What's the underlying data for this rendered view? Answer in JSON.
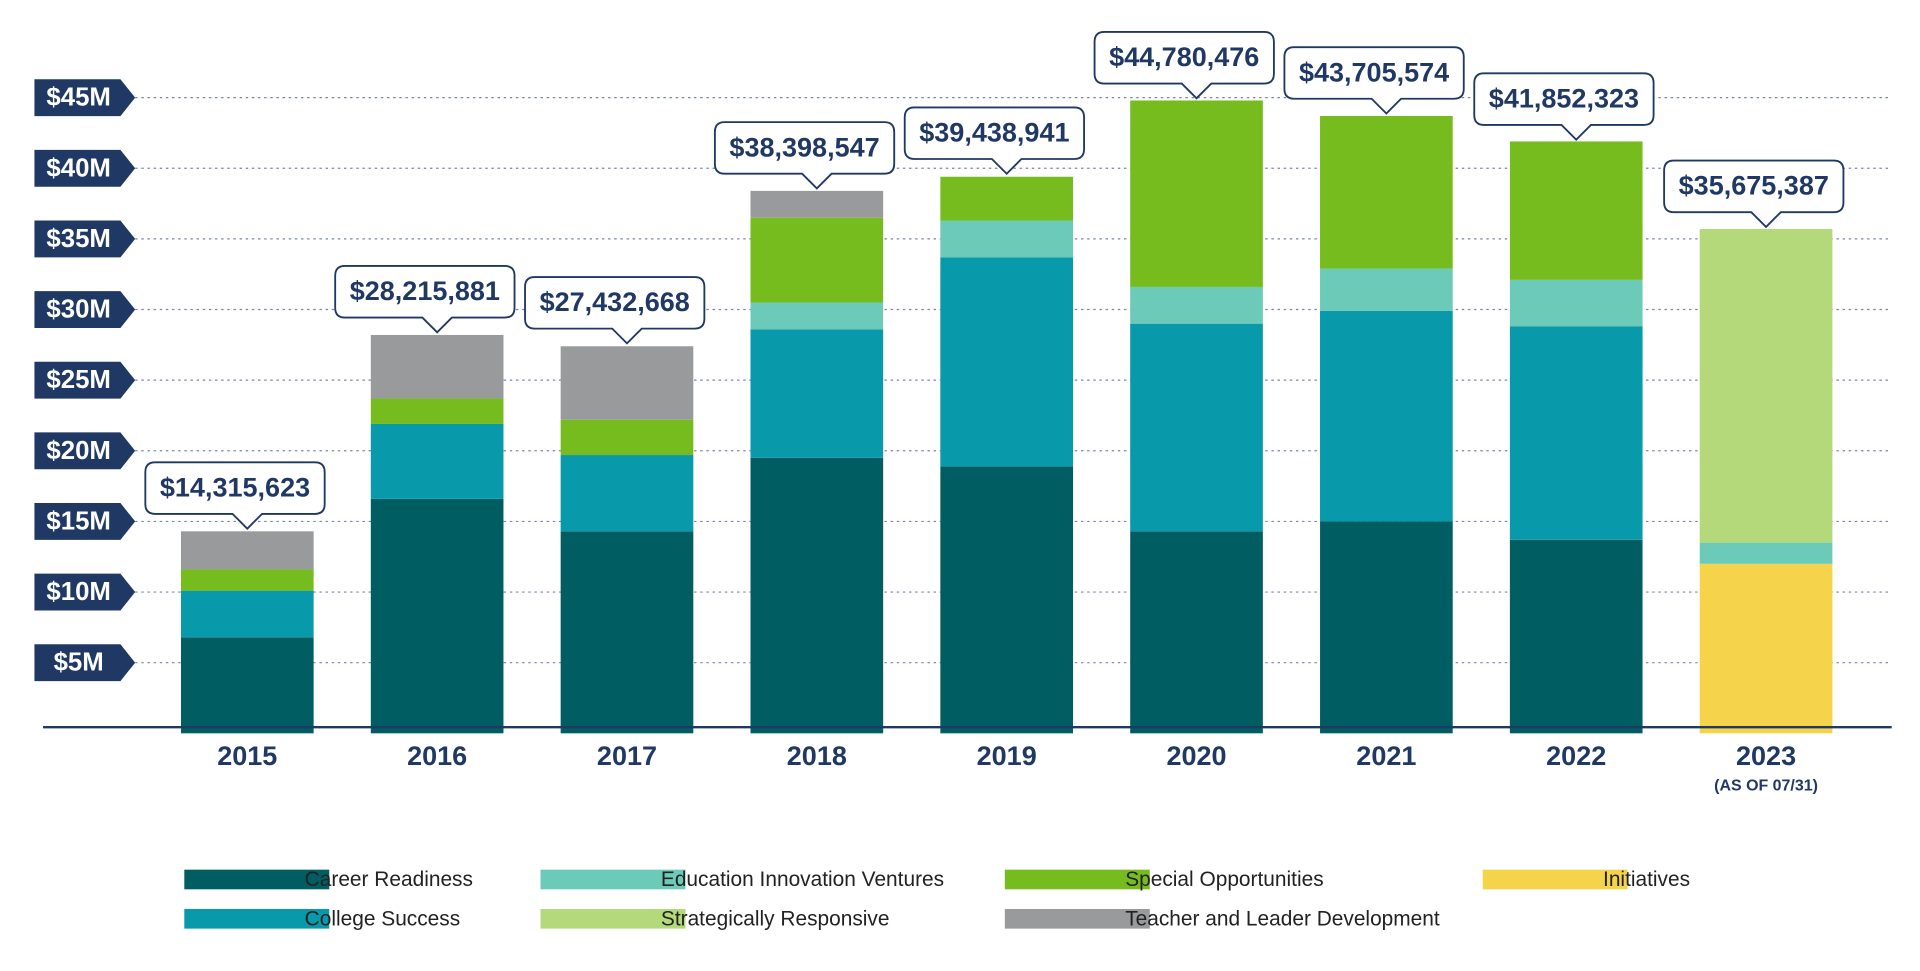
{
  "chart_data": {
    "type": "stacked-bar",
    "categories": [
      "2015",
      "2016",
      "2017",
      "2018",
      "2019",
      "2020",
      "2021",
      "2022",
      "2023"
    ],
    "category_sublabels": [
      null,
      null,
      null,
      null,
      null,
      null,
      null,
      null,
      "(AS OF 07/31)"
    ],
    "series": [
      {
        "name": "Initiatives",
        "color": "#f5d44b",
        "values": [
          0,
          0,
          0,
          0,
          0,
          0,
          0,
          0,
          12.0
        ]
      },
      {
        "name": "Career Readiness",
        "color": "#005e63",
        "values": [
          6.8,
          16.6,
          14.3,
          19.5,
          18.9,
          14.3,
          15.0,
          13.7,
          0
        ]
      },
      {
        "name": "College Success",
        "color": "#0899ab",
        "values": [
          3.3,
          5.3,
          5.4,
          9.1,
          14.8,
          14.7,
          14.9,
          15.1,
          0
        ]
      },
      {
        "name": "Education Innovation Ventures",
        "color": "#6ccbb8",
        "values": [
          0,
          0,
          0,
          1.9,
          2.6,
          2.6,
          3.0,
          3.3,
          1.5
        ]
      },
      {
        "name": "Special Opportunities",
        "color": "#77bc1f",
        "values": [
          1.5,
          1.8,
          2.5,
          6.0,
          3.1,
          13.2,
          10.8,
          9.8,
          0
        ]
      },
      {
        "name": "Strategically Responsive",
        "color": "#b3d97a",
        "values": [
          0,
          0,
          0,
          0,
          0,
          0,
          0,
          0,
          22.2
        ]
      },
      {
        "name": "Teacher and Leader Development",
        "color": "#999a9c",
        "values": [
          2.7,
          4.5,
          5.2,
          1.9,
          0,
          0,
          0,
          0,
          0
        ]
      }
    ],
    "totals": {
      "values": [
        14.315623,
        28.215881,
        27.432668,
        38.398547,
        39.438941,
        44.780476,
        43.705574,
        41.852323,
        35.675387
      ],
      "value_labels": [
        "$14,315,623",
        "$28,215,881",
        "$27,432,668",
        "$38,398,547",
        "$39,438,941",
        "$44,780,476",
        "$43,705,574",
        "$41,852,323",
        "$35,675,387"
      ]
    },
    "ylim": [
      0,
      50
    ],
    "yticks": [
      {
        "value": 5,
        "label": "$5M"
      },
      {
        "value": 10,
        "label": "$10M"
      },
      {
        "value": 15,
        "label": "$15M"
      },
      {
        "value": 20,
        "label": "$20M"
      },
      {
        "value": 25,
        "label": "$25M"
      },
      {
        "value": 30,
        "label": "$30M"
      },
      {
        "value": 35,
        "label": "$35M"
      },
      {
        "value": 40,
        "label": "$40M"
      },
      {
        "value": 45,
        "label": "$45M"
      }
    ],
    "grid": true
  }
}
